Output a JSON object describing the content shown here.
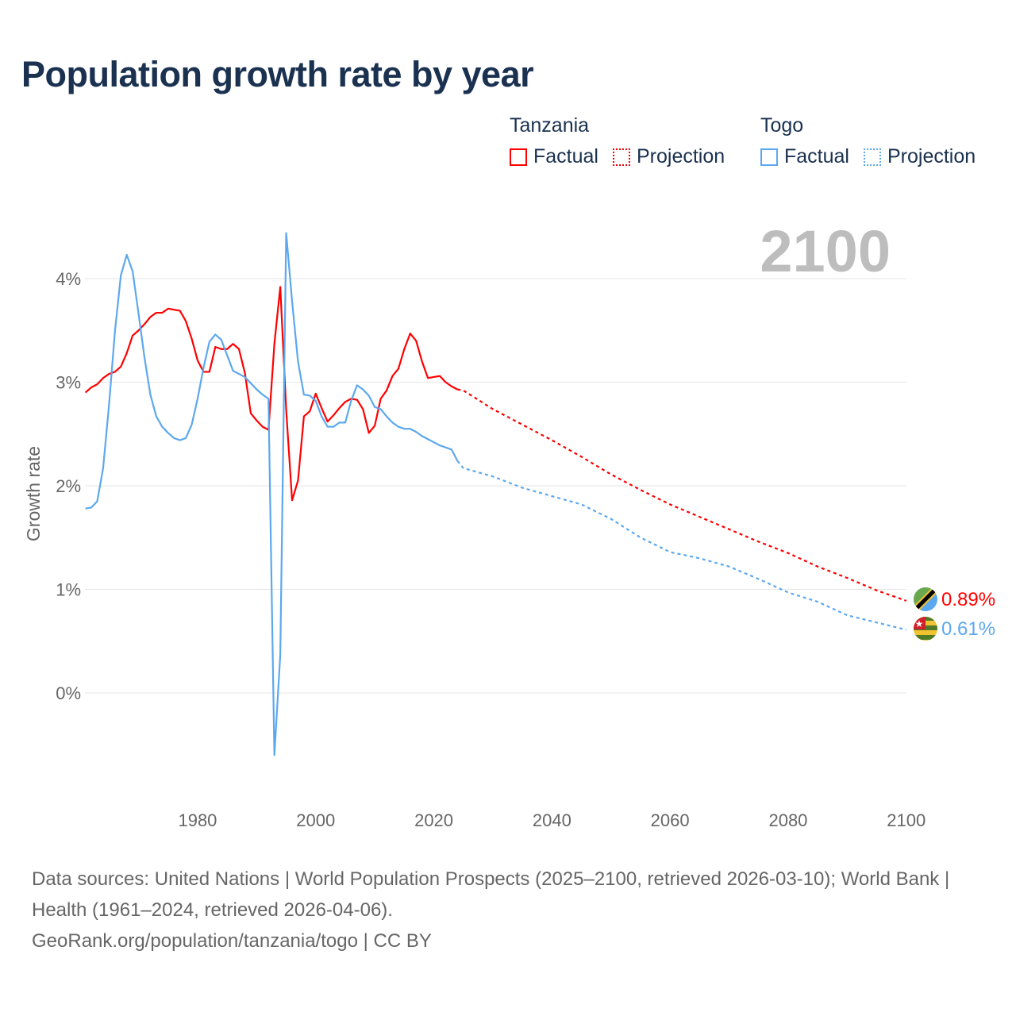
{
  "title": "Population growth rate by year",
  "year_overlay": "2100",
  "legend": {
    "groups": [
      {
        "name": "Tanzania",
        "factual": "Factual",
        "projection": "Projection"
      },
      {
        "name": "Togo",
        "factual": "Factual",
        "projection": "Projection"
      }
    ]
  },
  "footer": {
    "sources": "Data sources: United Nations | World Population Prospects (2025–2100, retrieved 2026-03-10); World Bank | Health (1961–2024, retrieved 2026-04-06).",
    "credit": "GeoRank.org/population/tanzania/togo | CC BY"
  },
  "chart_data": {
    "type": "line",
    "title": "Population growth rate by year",
    "xlabel": "",
    "ylabel": "Growth rate",
    "xlim": [
      1961,
      2100
    ],
    "ylim": [
      -0.9,
      4.6
    ],
    "x_ticks": [
      1980,
      2000,
      2020,
      2040,
      2060,
      2080,
      2100
    ],
    "x_tick_labels": [
      "1980",
      "2000",
      "2020",
      "2040",
      "2060",
      "2080",
      "2100"
    ],
    "y_ticks": [
      0,
      1,
      2,
      3,
      4
    ],
    "y_tick_labels": [
      "0%",
      "1%",
      "2%",
      "3%",
      "4%"
    ],
    "grid": true,
    "legend_position": "top-right",
    "series": [
      {
        "name": "Tanzania",
        "color": "#ff0000",
        "end_label": "0.89%",
        "factual": {
          "start_year": 1961,
          "values": [
            2.9,
            2.95,
            2.98,
            3.04,
            3.08,
            3.1,
            3.15,
            3.28,
            3.45,
            3.5,
            3.56,
            3.63,
            3.67,
            3.67,
            3.71,
            3.7,
            3.69,
            3.59,
            3.42,
            3.21,
            3.1,
            3.1,
            3.34,
            3.32,
            3.32,
            3.37,
            3.32,
            3.09,
            2.7,
            2.63,
            2.57,
            2.54,
            3.37,
            3.92,
            2.73,
            1.86,
            2.05,
            2.67,
            2.72,
            2.89,
            2.75,
            2.62,
            2.68,
            2.75,
            2.81,
            2.84,
            2.83,
            2.74,
            2.51,
            2.58,
            2.84,
            2.92,
            3.06,
            3.13,
            3.32,
            3.47,
            3.4,
            3.2,
            3.04,
            3.05,
            3.06,
            3.0,
            2.96,
            2.93
          ]
        },
        "projection": {
          "years": [
            2025,
            2030,
            2035,
            2040,
            2045,
            2050,
            2055,
            2060,
            2065,
            2070,
            2075,
            2080,
            2085,
            2090,
            2095,
            2100
          ],
          "values": [
            2.92,
            2.74,
            2.59,
            2.44,
            2.28,
            2.11,
            1.96,
            1.82,
            1.7,
            1.58,
            1.46,
            1.35,
            1.22,
            1.11,
            0.99,
            0.89
          ]
        }
      },
      {
        "name": "Togo",
        "color": "#5ca8ee",
        "end_label": "0.61%",
        "factual": {
          "start_year": 1961,
          "values": [
            1.78,
            1.79,
            1.85,
            2.17,
            2.78,
            3.49,
            4.03,
            4.23,
            4.07,
            3.66,
            3.24,
            2.88,
            2.67,
            2.57,
            2.51,
            2.46,
            2.44,
            2.46,
            2.59,
            2.84,
            3.14,
            3.39,
            3.46,
            3.41,
            3.26,
            3.11,
            3.08,
            3.05,
            2.99,
            2.93,
            2.88,
            2.84,
            -0.6,
            0.37,
            4.44,
            3.78,
            3.2,
            2.88,
            2.87,
            2.82,
            2.67,
            2.57,
            2.57,
            2.61,
            2.61,
            2.82,
            2.97,
            2.93,
            2.87,
            2.76,
            2.74,
            2.67,
            2.61,
            2.57,
            2.55,
            2.55,
            2.52,
            2.48,
            2.45,
            2.42,
            2.39,
            2.37,
            2.35,
            2.24
          ]
        },
        "projection": {
          "years": [
            2025,
            2030,
            2035,
            2040,
            2045,
            2050,
            2055,
            2060,
            2065,
            2070,
            2075,
            2080,
            2085,
            2090,
            2095,
            2100
          ],
          "values": [
            2.17,
            2.09,
            1.98,
            1.9,
            1.82,
            1.68,
            1.5,
            1.36,
            1.3,
            1.22,
            1.1,
            0.97,
            0.88,
            0.75,
            0.68,
            0.61
          ]
        }
      }
    ]
  }
}
